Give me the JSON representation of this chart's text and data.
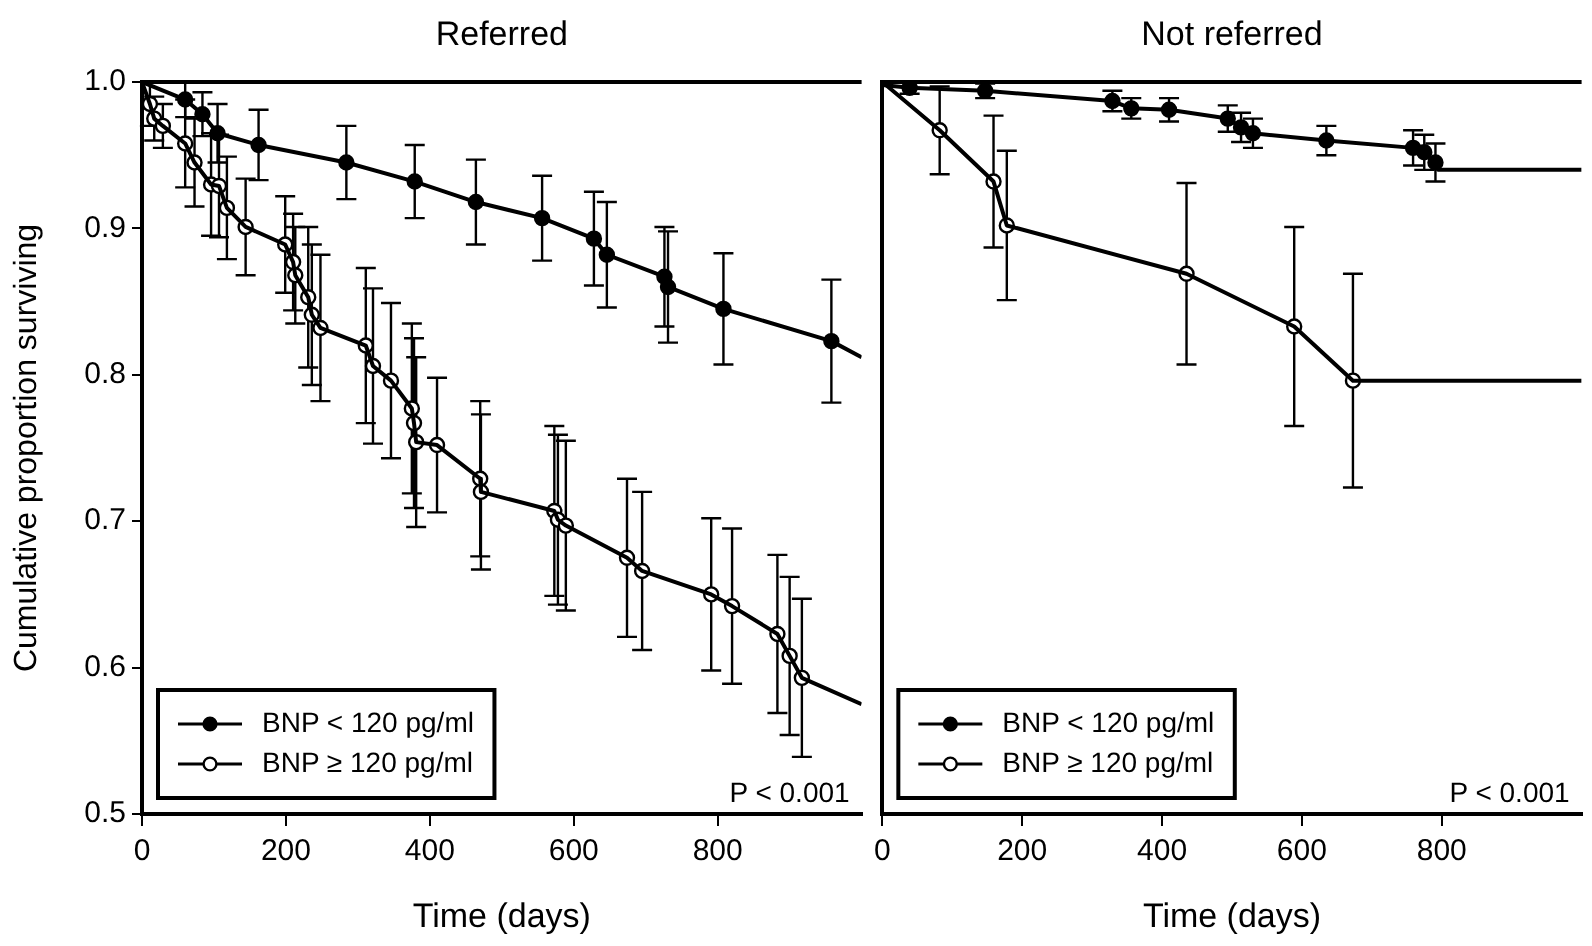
{
  "chart_data": [
    {
      "type": "line",
      "title": "Referred",
      "xlabel": "Time (days)",
      "ylabel": "Cumulative proportion surviving",
      "xlim": [
        0,
        1000
      ],
      "ylim": [
        0.5,
        1.0
      ],
      "xticks": [
        0,
        200,
        400,
        600,
        800
      ],
      "yticks": [
        0.5,
        0.6,
        0.7,
        0.8,
        0.9,
        {
          "value": 1.0,
          "label": "1.0"
        }
      ],
      "legend": "bottom left",
      "annotations": [
        "P < 0.001"
      ],
      "series": [
        {
          "type": "line",
          "color": "#000000",
          "x": [
            0,
            60,
            84,
            105,
            162,
            284,
            379,
            464,
            556,
            628,
            646,
            726,
            731,
            808,
            958,
            1000
          ],
          "values": [
            1.0,
            0.988,
            0.978,
            0.965,
            0.957,
            0.945,
            0.932,
            0.918,
            0.907,
            0.893,
            0.882,
            0.867,
            0.86,
            0.845,
            0.823,
            0.812
          ]
        },
        {
          "type": "line",
          "color": "#000000",
          "x": [
            0,
            11,
            17,
            29,
            60,
            73,
            96,
            107,
            118,
            144,
            199,
            210,
            213,
            231,
            236,
            248,
            311,
            321,
            346,
            375,
            378,
            381,
            410,
            470,
            471,
            573,
            578,
            589,
            674,
            695,
            791,
            820,
            883,
            900,
            917,
            1000
          ],
          "values": [
            1.0,
            0.985,
            0.975,
            0.97,
            0.958,
            0.945,
            0.93,
            0.929,
            0.914,
            0.901,
            0.889,
            0.877,
            0.868,
            0.853,
            0.841,
            0.832,
            0.82,
            0.806,
            0.796,
            0.777,
            0.767,
            0.754,
            0.752,
            0.729,
            0.72,
            0.707,
            0.701,
            0.697,
            0.675,
            0.666,
            0.65,
            0.642,
            0.623,
            0.608,
            0.593,
            0.575
          ]
        },
        {
          "type": "scatter",
          "name": "BNP < 120 pg/ml",
          "color": "#000000",
          "marker": "circle",
          "x": [
            60,
            84,
            105,
            162,
            284,
            379,
            464,
            556,
            628,
            646,
            726,
            731,
            808,
            958
          ],
          "values": [
            0.988,
            0.978,
            0.965,
            0.957,
            0.945,
            0.932,
            0.918,
            0.907,
            0.893,
            0.882,
            0.867,
            0.86,
            0.845,
            0.823
          ],
          "errors": [
            0.012,
            0.015,
            0.02,
            0.024,
            0.025,
            0.025,
            0.029,
            0.029,
            0.032,
            0.036,
            0.034,
            0.038,
            0.038,
            0.042
          ]
        },
        {
          "type": "scatter",
          "name": "BNP ≥ 120 pg/ml",
          "color": "#ffffff",
          "marker": "circle",
          "x": [
            11,
            17,
            29,
            60,
            73,
            96,
            107,
            118,
            144,
            199,
            210,
            213,
            231,
            236,
            248,
            311,
            321,
            346,
            375,
            378,
            381,
            410,
            470,
            471,
            573,
            578,
            589,
            674,
            695,
            791,
            820,
            883,
            900,
            917
          ],
          "values": [
            0.985,
            0.975,
            0.97,
            0.958,
            0.945,
            0.93,
            0.929,
            0.914,
            0.901,
            0.889,
            0.877,
            0.868,
            0.853,
            0.841,
            0.832,
            0.82,
            0.806,
            0.796,
            0.777,
            0.767,
            0.754,
            0.752,
            0.729,
            0.72,
            0.707,
            0.701,
            0.697,
            0.675,
            0.666,
            0.65,
            0.642,
            0.623,
            0.608,
            0.593
          ],
          "errors": [
            0.015,
            0.015,
            0.015,
            0.03,
            0.03,
            0.035,
            0.035,
            0.035,
            0.033,
            0.033,
            0.033,
            0.033,
            0.048,
            0.048,
            0.05,
            0.053,
            0.053,
            0.053,
            0.058,
            0.058,
            0.058,
            0.046,
            0.053,
            0.053,
            0.058,
            0.058,
            0.058,
            0.054,
            0.054,
            0.052,
            0.053,
            0.054,
            0.054,
            0.054
          ]
        }
      ]
    },
    {
      "type": "line",
      "title": "Not referred",
      "xlabel": "Time (days)",
      "xlim": [
        0,
        1000
      ],
      "ylim": [
        0.5,
        1.0
      ],
      "xticks": [
        0,
        200,
        400,
        600,
        800
      ],
      "yticks": [
        0.5,
        0.6,
        0.7,
        0.8,
        0.9,
        1
      ],
      "tick_labels": "x",
      "legend": "bottom left",
      "annotations": [
        "P < 0.001"
      ],
      "series": [
        {
          "type": "line",
          "color": "#000000",
          "x": [
            0,
            39,
            147,
            329,
            356,
            410,
            494,
            513,
            530,
            635,
            759,
            775,
            791,
            795,
            1000
          ],
          "values": [
            0.998,
            0.996,
            0.994,
            0.987,
            0.982,
            0.981,
            0.975,
            0.969,
            0.965,
            0.96,
            0.955,
            0.952,
            0.945,
            0.94,
            0.94
          ]
        },
        {
          "type": "line",
          "color": "#000000",
          "x": [
            0,
            82,
            159,
            178,
            435,
            589,
            673,
            1000
          ],
          "values": [
            1.0,
            0.967,
            0.932,
            0.902,
            0.869,
            0.833,
            0.796,
            0.796
          ]
        },
        {
          "type": "scatter",
          "name": "BNP < 120 pg/ml",
          "color": "#000000",
          "marker": "circle",
          "x": [
            39,
            147,
            329,
            356,
            410,
            494,
            513,
            530,
            635,
            759,
            775,
            791
          ],
          "values": [
            0.996,
            0.994,
            0.987,
            0.982,
            0.981,
            0.975,
            0.969,
            0.965,
            0.96,
            0.955,
            0.952,
            0.945
          ],
          "errors": [
            0.004,
            0.005,
            0.007,
            0.007,
            0.008,
            0.009,
            0.01,
            0.01,
            0.01,
            0.012,
            0.012,
            0.013
          ]
        },
        {
          "type": "scatter",
          "name": "BNP ≥ 120 pg/ml",
          "color": "#ffffff",
          "marker": "circle",
          "x": [
            82,
            159,
            178,
            435,
            589,
            673
          ],
          "values": [
            0.967,
            0.932,
            0.902,
            0.869,
            0.833,
            0.796
          ],
          "errors": [
            0.03,
            0.045,
            0.051,
            0.062,
            0.068,
            0.073
          ]
        }
      ]
    }
  ]
}
